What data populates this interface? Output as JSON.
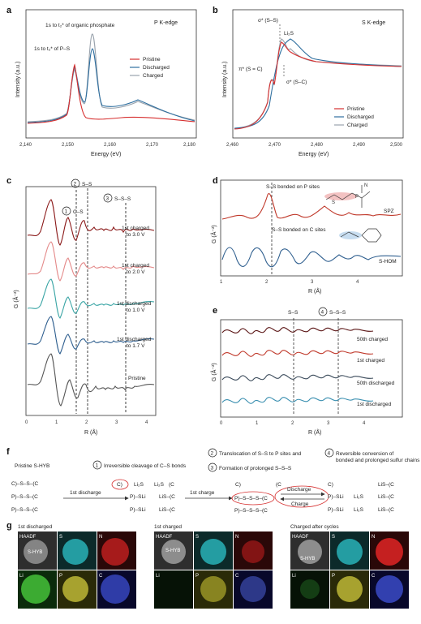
{
  "panel_a": {
    "label": "a",
    "edge": "P K-edge",
    "xlabel": "Energy (eV)",
    "ylabel": "Intensity (a.u.)",
    "xticks": [
      "2,140",
      "2,150",
      "2,160",
      "2,170",
      "2,180"
    ],
    "annot_1": "1s to t₂* of organic phosphate",
    "annot_2": "1s to t₂* of P–S",
    "legend": [
      "Pristine",
      "Discharged",
      "Charged"
    ]
  },
  "panel_b": {
    "label": "b",
    "edge": "S K-edge",
    "xlabel": "Energy (eV)",
    "ylabel": "Intensity (a.u.)",
    "xticks": [
      "2,460",
      "2,470",
      "2,480",
      "2,490",
      "2,500"
    ],
    "annot_ss": "σ* (S–S)",
    "annot_li2s": "Li₂S",
    "annot_pi": "π* (S = C)",
    "annot_sc": "σ* (S–C)",
    "legend": [
      "Pristine",
      "Discharged",
      "Charged"
    ]
  },
  "panel_c": {
    "label": "c",
    "ylabel": "G (Å⁻²)",
    "xlabel": "R (Å)",
    "xticks": [
      "0",
      "1",
      "2",
      "3",
      "4"
    ],
    "mark_1": "1",
    "mark_1_text": "C–S",
    "mark_2": "2",
    "mark_2_text": "S–S",
    "mark_3": "3",
    "mark_3_text": "S–S–S",
    "curves": [
      "1st charged\nto 3.0 V",
      "1st charged\nto 2.0 V",
      "1st discharged\nto 1.0 V",
      "1st discharged\nto 1.7 V",
      "Pristine"
    ]
  },
  "panel_d": {
    "label": "d",
    "ylabel": "G (Å⁻²)",
    "xlabel": "R (Å)",
    "xticks": [
      "1",
      "2",
      "3",
      "4"
    ],
    "annot_p": "S–S bonded on P sites",
    "annot_c": "S–S bonded on C sites",
    "curve_1": "SPZ",
    "curve_2": "S-HOM",
    "mol_s": "S",
    "mol_p": "P",
    "mol_n": "N"
  },
  "panel_e": {
    "label": "e",
    "ylabel": "G (Å⁻²)",
    "xlabel": "R (Å)",
    "xticks": [
      "0",
      "1",
      "2",
      "3",
      "4"
    ],
    "mark_ss": "S–S",
    "mark_4": "4",
    "mark_4_text": "S–S–S",
    "curves": [
      "50th charged",
      "1st charged",
      "50th discharged",
      "1st discharged"
    ]
  },
  "panel_f": {
    "label": "f",
    "step_1": "Irreversible cleavage of C–S bonds",
    "step_2": "Translocation of S–S to P sites and",
    "step_3": "Formation of prolonged S–S–S",
    "step_4": "Reversible conversion of",
    "step_4b": "bonded and prolonged sulfur chains",
    "pristine": "Pristine S-HYB",
    "first_discharge": "1st discharge",
    "first_charge": "1st charge",
    "discharge": "Discharge",
    "charge": "Charge",
    "n1": "1",
    "n2": "2",
    "n3": "3",
    "n4": "4",
    "struct_cssc": "C)–S–S–(C",
    "struct_pssc": "P)–S–S–(C",
    "struct_c": "C)",
    "struct_c2": "(C",
    "struct_li2s": "Li₂S",
    "struct_psli": "P)–SLi",
    "struct_lisc": "LiS–(C",
    "struct_psssc": "P)–S–S–S–(C",
    "struct_pssssc": "P)–S–S–S–(C"
  },
  "panel_g": {
    "label": "g",
    "groups": [
      {
        "title": "1st discharged",
        "haadf": "HAADF",
        "sample": "S-HYB",
        "maps": [
          "S",
          "N",
          "Li",
          "P",
          "C"
        ]
      },
      {
        "title": "1st charged",
        "haadf": "HAADF",
        "sample": "S-HYB",
        "maps": [
          "S",
          "N",
          "Li",
          "P",
          "C"
        ]
      },
      {
        "title": "Charged after cycles",
        "haadf": "HAADF",
        "sample": "S-HYB",
        "maps": [
          "S",
          "N",
          "Li",
          "P",
          "C"
        ]
      }
    ]
  },
  "colors": {
    "pristine": "#d62f2f",
    "discharged": "#2f6f9f",
    "charged": "#9aa3ad",
    "dark_red": "#8b1a1a",
    "pink": "#e48a8a",
    "teal": "#3aa5a5"
  }
}
